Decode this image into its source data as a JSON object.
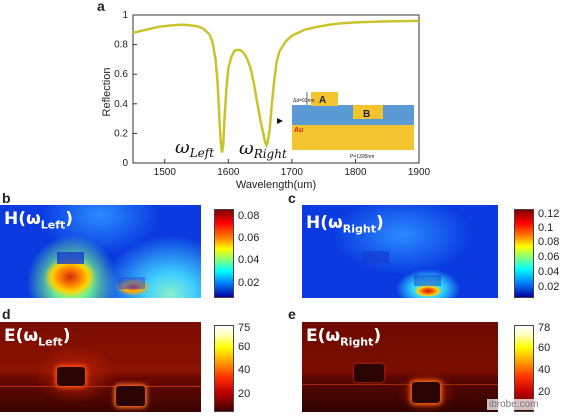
{
  "panels": {
    "a": "a",
    "b": "b",
    "c": "c",
    "d": "d",
    "e": "e"
  },
  "chart_data": {
    "type": "line",
    "xlabel": "Wavelength(um)",
    "ylabel": "Reflection",
    "xlim": [
      1450,
      1900
    ],
    "ylim": [
      0,
      1
    ],
    "x_ticks": [
      "1500",
      "1600",
      "1700",
      "1800",
      "1900"
    ],
    "y_ticks": [
      "0",
      "0.2",
      "0.4",
      "0.6",
      "0.8",
      "1"
    ],
    "grid": false,
    "line_color": "#c9c42c",
    "series": [
      {
        "x": [
          1450,
          1470,
          1490,
          1510,
          1530,
          1550,
          1560,
          1570,
          1575,
          1580,
          1583,
          1586,
          1588,
          1590,
          1592,
          1594,
          1597,
          1600,
          1605,
          1610,
          1615,
          1620,
          1625,
          1630,
          1635,
          1640,
          1645,
          1650,
          1655,
          1658,
          1660,
          1662,
          1665,
          1668,
          1672,
          1676,
          1680,
          1690,
          1700,
          1710,
          1720,
          1740,
          1760,
          1780,
          1800,
          1830,
          1860,
          1900
        ],
        "y": [
          0.88,
          0.9,
          0.92,
          0.93,
          0.935,
          0.925,
          0.91,
          0.87,
          0.82,
          0.7,
          0.55,
          0.3,
          0.15,
          0.07,
          0.12,
          0.3,
          0.5,
          0.64,
          0.72,
          0.76,
          0.765,
          0.76,
          0.74,
          0.7,
          0.64,
          0.54,
          0.42,
          0.3,
          0.2,
          0.14,
          0.12,
          0.14,
          0.22,
          0.38,
          0.55,
          0.68,
          0.75,
          0.82,
          0.86,
          0.88,
          0.9,
          0.92,
          0.935,
          0.945,
          0.95,
          0.955,
          0.958,
          0.96
        ]
      }
    ],
    "annotations": {
      "omega_left_main": "ω",
      "omega_left_sub": "Left",
      "omega_right_main": "ω",
      "omega_right_sub": "Right"
    }
  },
  "inset": {
    "dimension_label": "Δd=92nm",
    "label_a": "A",
    "label_b": "B",
    "substrate_label": "Au",
    "period_label": "P=1395nm",
    "colors": {
      "pad": "#f4c430",
      "dielectric": "#5b9bd5",
      "gold": "#f4c430"
    }
  },
  "maps": {
    "h_left": {
      "label_main": "H(ω",
      "label_sub": "Left",
      "label_close": ")",
      "colorbar_ticks": [
        "0.08",
        "0.06",
        "0.04",
        "0.02"
      ]
    },
    "h_right": {
      "label_main": "H(ω",
      "label_sub": "Right",
      "label_close": ")",
      "colorbar_ticks": [
        "0.12",
        "0.1",
        "0.08",
        "0.06",
        "0.04",
        "0.02"
      ]
    },
    "e_left": {
      "label_main": "E(ω",
      "label_sub": "Left",
      "label_close": ")",
      "colorbar_ticks": [
        "75",
        "60",
        "40",
        "20"
      ]
    },
    "e_right": {
      "label_main": "E(ω",
      "label_sub": "Right",
      "label_close": ")",
      "colorbar_ticks": [
        "78",
        "60",
        "40",
        "20"
      ]
    }
  },
  "watermark": "ibrobe.com"
}
